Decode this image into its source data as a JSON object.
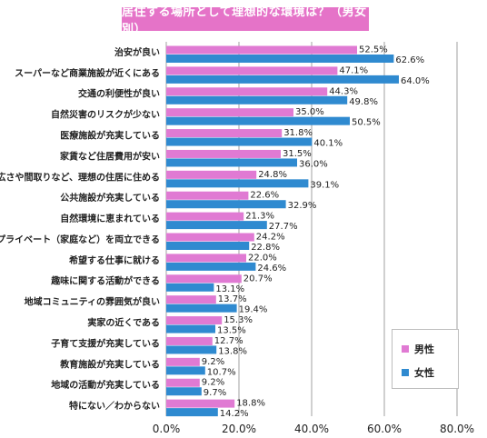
{
  "title": "居住する場所として理想的な環境は？（男女別）",
  "colors": {
    "male": "#e07ad3",
    "female": "#2f8ad0",
    "title_bg": "#e573c8",
    "axis": "#a0a0a0"
  },
  "legend": {
    "male": "男性",
    "female": "女性"
  },
  "chart_data": {
    "type": "bar",
    "orientation": "horizontal",
    "title": "居住する場所として理想的な環境は？（男女別）",
    "categories": [
      "治安が良い",
      "スーパーなど商業施設が近くにある",
      "交通の利便性が良い",
      "自然災害のリスクが少ない",
      "医療施設が充実している",
      "家賃など住居費用が安い",
      "広さや間取りなど、理想の住居に住める",
      "公共施設が充実している",
      "自然環境に恵まれている",
      "仕事とプライベート（家庭など）を両立できる",
      "希望する仕事に就ける",
      "趣味に関する活動ができる",
      "地域コミュニティの雰囲気が良い",
      "実家の近くである",
      "子育て支援が充実している",
      "教育施設が充実している",
      "地域の活動が充実している",
      "特にない／わからない"
    ],
    "series": [
      {
        "name": "男性",
        "values": [
          52.5,
          47.1,
          44.3,
          35.0,
          31.8,
          31.5,
          24.8,
          22.6,
          21.3,
          24.2,
          22.0,
          20.7,
          13.7,
          15.3,
          12.7,
          9.2,
          9.2,
          18.8
        ]
      },
      {
        "name": "女性",
        "values": [
          62.6,
          64.0,
          49.8,
          50.5,
          40.1,
          36.0,
          39.1,
          32.9,
          27.7,
          22.8,
          24.6,
          13.1,
          19.4,
          13.5,
          13.8,
          10.7,
          9.7,
          14.2
        ]
      }
    ],
    "value_labels": {
      "male": [
        "52.5%",
        "47.1%",
        "44.3%",
        "35.0%",
        "31.8%",
        "31.5%",
        "24.8%",
        "22.6%",
        "21.3%",
        "24.2%",
        "22.0%",
        "20.7%",
        "13.7%",
        "15.3%",
        "12.7%",
        "9.2%",
        "9.2%",
        "18.8%"
      ],
      "female": [
        "62.6%",
        "64.0%",
        "49.8%",
        "50.5%",
        "40.1%",
        "36.0%",
        "39.1%",
        "32.9%",
        "27.7%",
        "22.8%",
        "24.6%",
        "13.1%",
        "19.4%",
        "13.5%",
        "13.8%",
        "10.7%",
        "9.7%",
        "14.2%"
      ]
    },
    "xlim": [
      0,
      80
    ],
    "xticks": [
      "0.0%",
      "20.0%",
      "40.0%",
      "60.0%",
      "80.0%"
    ],
    "grid": true,
    "legend_position": "bottom-right"
  }
}
